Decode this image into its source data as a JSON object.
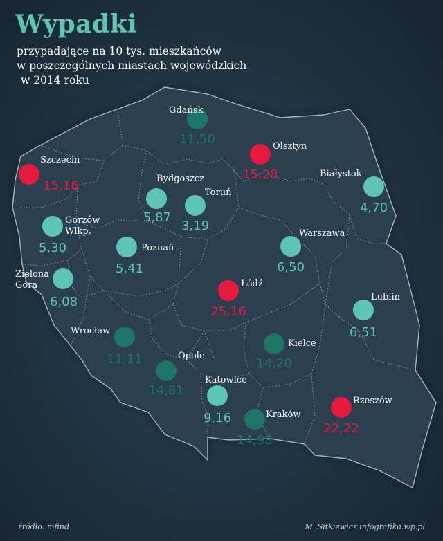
{
  "header": {
    "title": "Wypadki",
    "subtitle_lines": [
      "przypadające na 10 tys. mieszkańców",
      "w poszczególnych miastach wojewódzkich",
      "w 2014 roku"
    ]
  },
  "legend_colors": {
    "low": "#5ec4b4",
    "medium": "#1d7566",
    "high": "#e8193e"
  },
  "cities": [
    {
      "id": "gdansk",
      "name_lines": [
        "Gdańsk"
      ],
      "value": "11,50",
      "level": "medium"
    },
    {
      "id": "olsztyn",
      "name_lines": [
        "Olsztyn"
      ],
      "value": "15,28",
      "level": "high"
    },
    {
      "id": "szczecin",
      "name_lines": [
        "Szczecin"
      ],
      "value": "15,16",
      "level": "high"
    },
    {
      "id": "bialystok",
      "name_lines": [
        "Białystok"
      ],
      "value": "4,70",
      "level": "low"
    },
    {
      "id": "bydgoszcz",
      "name_lines": [
        "Bydgoszcz"
      ],
      "value": "5,87",
      "level": "low"
    },
    {
      "id": "torun",
      "name_lines": [
        "Toruń"
      ],
      "value": "3,19",
      "level": "low"
    },
    {
      "id": "gorzow",
      "name_lines": [
        "Gorzów",
        "Wlkp."
      ],
      "value": "5,30",
      "level": "low"
    },
    {
      "id": "poznan",
      "name_lines": [
        "Poznań"
      ],
      "value": "5,41",
      "level": "low"
    },
    {
      "id": "warszawa",
      "name_lines": [
        "Warszawa"
      ],
      "value": "6,50",
      "level": "low"
    },
    {
      "id": "zielona-gora",
      "name_lines": [
        "Zielona",
        "Góra"
      ],
      "value": "6,08",
      "level": "low"
    },
    {
      "id": "lodz",
      "name_lines": [
        "Łódź"
      ],
      "value": "25,16",
      "level": "high"
    },
    {
      "id": "lublin",
      "name_lines": [
        "Lublin"
      ],
      "value": "6,51",
      "level": "low"
    },
    {
      "id": "wroclaw",
      "name_lines": [
        "Wrocław"
      ],
      "value": "11,11",
      "level": "medium"
    },
    {
      "id": "kielce",
      "name_lines": [
        "Kielce"
      ],
      "value": "14,20",
      "level": "medium"
    },
    {
      "id": "opole",
      "name_lines": [
        "Opole"
      ],
      "value": "14,81",
      "level": "medium"
    },
    {
      "id": "katowice",
      "name_lines": [
        "Katowice"
      ],
      "value": "9,16",
      "level": "low"
    },
    {
      "id": "krakow",
      "name_lines": [
        "Kraków"
      ],
      "value": "14,98",
      "level": "medium"
    },
    {
      "id": "rzeszow",
      "name_lines": [
        "Rzeszów"
      ],
      "value": "22,22",
      "level": "high"
    }
  ],
  "footer": {
    "source": "źródło: mfind",
    "credit": "M. Sitkiewicz infografika.wp.pl"
  }
}
